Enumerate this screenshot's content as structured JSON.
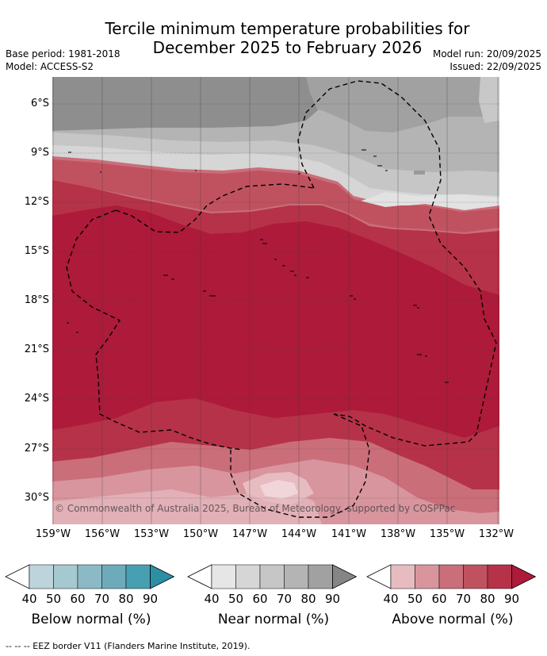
{
  "title_line1": "Tercile minimum temperature probabilities for",
  "title_line2": "December 2025 to February 2026",
  "base_period": "Base period: 1981-2018",
  "model": "Model: ACCESS-S2",
  "model_run": "Model run: 20/09/2025",
  "issued": "Issued: 22/09/2025",
  "lat_labels": [
    "6°S",
    "9°S",
    "12°S",
    "15°S",
    "18°S",
    "21°S",
    "24°S",
    "27°S",
    "30°S"
  ],
  "lon_labels": [
    "159°W",
    "156°W",
    "153°W",
    "150°W",
    "147°W",
    "144°W",
    "141°W",
    "138°W",
    "135°W",
    "132°W"
  ],
  "copyright": "© Commonwealth of Australia 2025, Bureau of Meteorology, supported by COSPPac",
  "legends": [
    {
      "name": "below",
      "title": "Below normal (%)",
      "ticks": [
        "40",
        "50",
        "60",
        "70",
        "80",
        "90"
      ],
      "colors": [
        "#ffffff",
        "#bed4dc",
        "#a6c8d1",
        "#8bbac6",
        "#6eabba",
        "#47a0b2",
        "#2d8fa3"
      ]
    },
    {
      "name": "near",
      "title": "Near normal (%)",
      "ticks": [
        "40",
        "50",
        "60",
        "70",
        "80",
        "90"
      ],
      "colors": [
        "#ffffff",
        "#e6e6e6",
        "#d6d6d6",
        "#c6c6c6",
        "#b4b4b4",
        "#a1a1a1",
        "#858585"
      ]
    },
    {
      "name": "above",
      "title": "Above normal (%)",
      "ticks": [
        "40",
        "50",
        "60",
        "70",
        "80",
        "90"
      ],
      "colors": [
        "#ffffff",
        "#e7bcc1",
        "#d8959e",
        "#ca6e7a",
        "#c0525f",
        "#b63248",
        "#ad1a3a"
      ]
    }
  ],
  "footnote": "--  --  -- EEZ border V11 (Flanders Marine Institute, 2019)."
}
